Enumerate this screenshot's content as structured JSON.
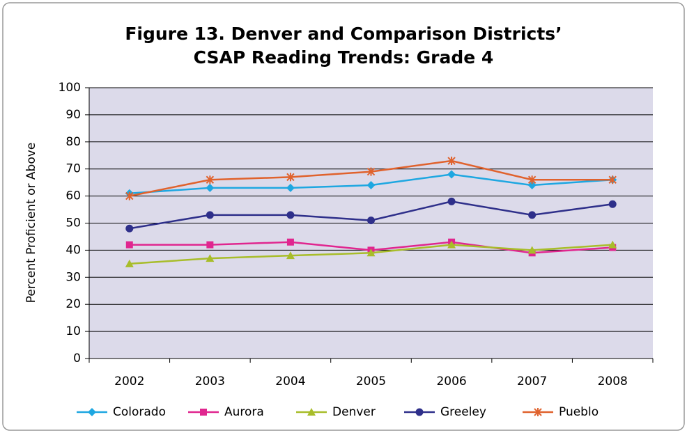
{
  "chart_data": {
    "type": "line",
    "title": [
      "Figure 13. Denver and Comparison Districts’",
      "CSAP Reading Trends: Grade 4"
    ],
    "y_label": "Percent Proficient or Above",
    "categories": [
      "2002",
      "2003",
      "2004",
      "2005",
      "2006",
      "2007",
      "2008"
    ],
    "series": [
      {
        "name": "Colorado",
        "color": "#1ea7e1",
        "marker": "diamond",
        "values": [
          61,
          63,
          63,
          64,
          68,
          64,
          66
        ]
      },
      {
        "name": "Aurora",
        "color": "#e0268f",
        "marker": "square",
        "values": [
          42,
          42,
          43,
          40,
          43,
          39,
          41
        ]
      },
      {
        "name": "Denver",
        "color": "#a8bd2a",
        "marker": "triangle",
        "values": [
          35,
          37,
          38,
          39,
          42,
          40,
          42
        ]
      },
      {
        "name": "Greeley",
        "color": "#2e2f8a",
        "marker": "circle",
        "values": [
          48,
          53,
          53,
          51,
          58,
          53,
          57
        ]
      },
      {
        "name": "Pueblo",
        "color": "#e0622d",
        "marker": "asterisk",
        "values": [
          60,
          66,
          67,
          69,
          73,
          66,
          66
        ]
      }
    ],
    "ylim": [
      0,
      100
    ],
    "yticks": [
      0,
      10,
      20,
      30,
      40,
      50,
      60,
      70,
      80,
      90,
      100
    ],
    "grid": true,
    "legend": "bottom"
  }
}
